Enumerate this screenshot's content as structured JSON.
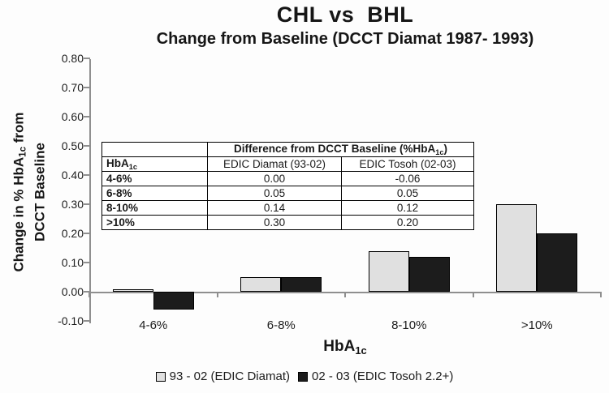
{
  "title": "CHL vs  BHL",
  "subtitle": "Change from Baseline (DCCT Diamat 1987- 1993)",
  "y_axis": {
    "title_line1_base": "Change in % HbA",
    "title_line1_sub": "1c",
    "title_line1_rest": " from",
    "title_line2": "DCCT Baseline",
    "tick_labels": [
      "0.80",
      "0.70",
      "0.60",
      "0.50",
      "0.40",
      "0.30",
      "0.20",
      "0.10",
      "0.00",
      "-0.10"
    ]
  },
  "x_axis": {
    "title_base": "HbA",
    "title_sub": "1c",
    "categories": [
      "4-6%",
      "6-8%",
      "8-10%",
      ">10%"
    ]
  },
  "legend": [
    {
      "label": "93 - 02 (EDIC Diamat)",
      "color": "#e0e0e0"
    },
    {
      "label": "02 - 03 (EDIC Tosoh 2.2+)",
      "color": "#1c1c1c"
    }
  ],
  "table": {
    "span_header_base": "Difference from DCCT Baseline (%HbA",
    "span_header_sub": "1c",
    "span_header_end": ")",
    "row_header_base": "HbA",
    "row_header_sub": "1c",
    "col_headers": [
      "EDIC Diamat (93-02)",
      "EDIC Tosoh (02-03)"
    ],
    "rows": [
      {
        "label": "4-6%",
        "diamat": "0.00",
        "tosoh": "-0.06"
      },
      {
        "label": "6-8%",
        "diamat": "0.05",
        "tosoh": "0.05"
      },
      {
        "label": "8-10%",
        "diamat": "0.14",
        "tosoh": "0.12"
      },
      {
        "label": ">10%",
        "diamat": "0.30",
        "tosoh": "0.20"
      }
    ]
  },
  "chart_data": {
    "type": "bar",
    "title": "CHL vs BHL",
    "subtitle": "Change from Baseline (DCCT Diamat 1987- 1993)",
    "categories": [
      "4-6%",
      "6-8%",
      "8-10%",
      ">10%"
    ],
    "series": [
      {
        "name": "93 - 02 (EDIC Diamat)",
        "values": [
          0.0,
          0.05,
          0.14,
          0.3
        ],
        "color": "#e0e0e0"
      },
      {
        "name": "02 - 03 (EDIC Tosoh 2.2+)",
        "values": [
          -0.06,
          0.05,
          0.12,
          0.2
        ],
        "color": "#1c1c1c"
      }
    ],
    "xlabel": "HbA1c",
    "ylabel": "Change in % HbA1c from DCCT Baseline",
    "ylim": [
      -0.1,
      0.8
    ],
    "ytick_step": 0.1,
    "grid": false,
    "legend_position": "bottom"
  }
}
